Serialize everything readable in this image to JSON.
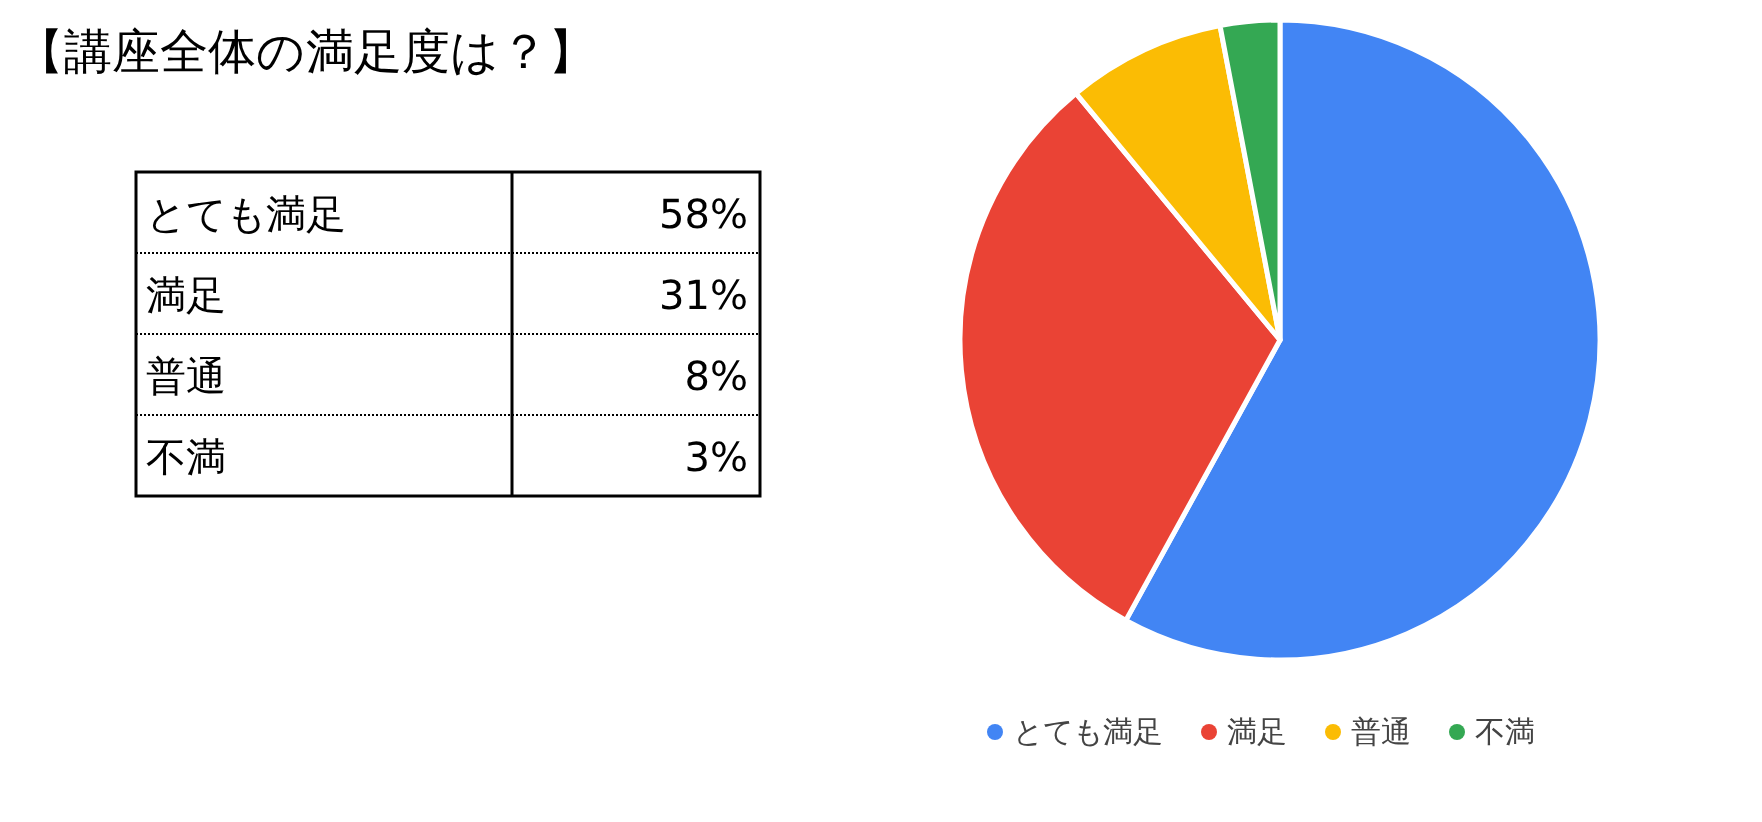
{
  "chart_data": [
    {
      "type": "other",
      "title": "【講座全体の満足度は？】",
      "annotations": [
        "とても満足",
        "58%",
        "満足",
        "31%",
        "普通",
        "8%",
        "不満",
        "3%"
      ]
    },
    {
      "type": "pie",
      "categories": [
        "とても満足",
        "満足",
        "普通",
        "不満"
      ],
      "values": [
        58,
        31,
        8,
        3
      ],
      "colors": [
        "#4285f4",
        "#ea4335",
        "#fbbc04",
        "#34a853"
      ],
      "legend": "bottom"
    }
  ]
}
